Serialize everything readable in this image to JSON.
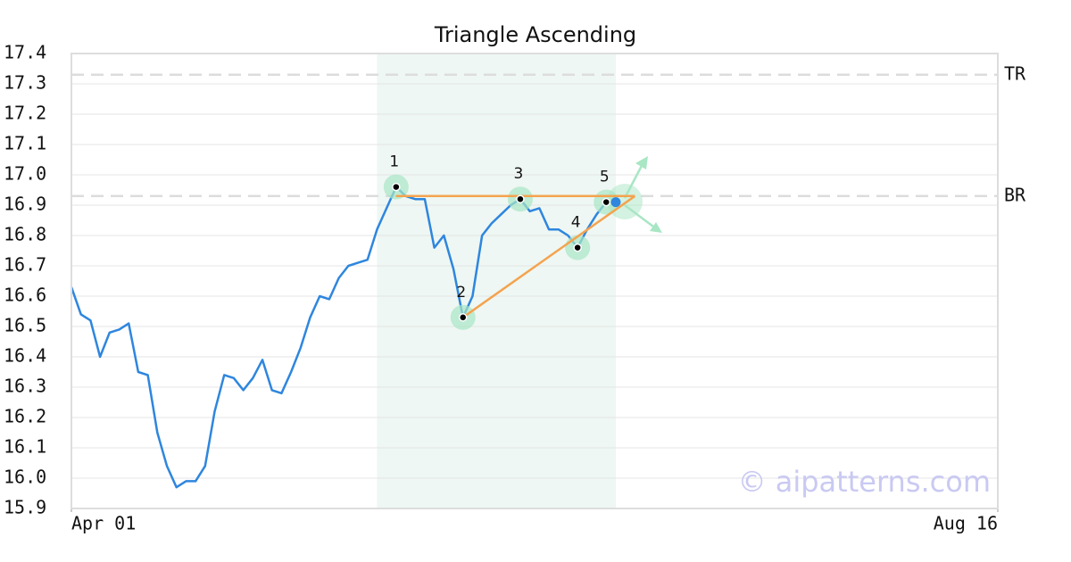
{
  "chart_data": {
    "type": "line",
    "title": "Triangle Ascending",
    "x": [
      0,
      1,
      2,
      3,
      4,
      5,
      6,
      7,
      8,
      9,
      10,
      11,
      12,
      13,
      14,
      15,
      16,
      17,
      18,
      19,
      20,
      21,
      22,
      23,
      24,
      25,
      26,
      27,
      28,
      29,
      30,
      31,
      32,
      33,
      34,
      35,
      36,
      37,
      38,
      39,
      40,
      41,
      42,
      43,
      44,
      45,
      46,
      47,
      48,
      49,
      50,
      51,
      52,
      53,
      54,
      55,
      56,
      57
    ],
    "values": [
      16.63,
      16.54,
      16.52,
      16.4,
      16.48,
      16.49,
      16.51,
      16.35,
      16.34,
      16.15,
      16.04,
      15.97,
      15.99,
      15.99,
      16.04,
      16.22,
      16.34,
      16.33,
      16.29,
      16.33,
      16.39,
      16.29,
      16.28,
      16.35,
      16.43,
      16.53,
      16.6,
      16.59,
      16.66,
      16.7,
      16.71,
      16.72,
      16.82,
      16.89,
      16.96,
      16.93,
      16.92,
      16.92,
      16.76,
      16.8,
      16.69,
      16.53,
      16.6,
      16.8,
      16.84,
      16.87,
      16.9,
      16.92,
      16.88,
      16.89,
      16.82,
      16.82,
      16.8,
      16.76,
      16.82,
      16.87,
      16.91,
      16.91
    ],
    "color": "#2e86de",
    "xlim": [
      0,
      97
    ],
    "xticks": [
      {
        "value": 0,
        "label": "Apr 01"
      },
      {
        "value": 97,
        "label": "Aug 16"
      }
    ],
    "ylim": [
      15.9,
      17.4
    ],
    "yticks": [
      15.9,
      {
        "value": 16.0,
        "label": "16.0"
      },
      16.1,
      16.2,
      16.3,
      16.4,
      16.5,
      16.6,
      16.7,
      16.8,
      16.9,
      {
        "value": 17.0,
        "label": "17.0"
      },
      17.1,
      17.2,
      17.3,
      17.4
    ],
    "grid": true,
    "highlight_x": [
      32,
      57
    ],
    "levels": [
      {
        "label": "TR",
        "value": 17.33
      },
      {
        "label": "BR",
        "value": 16.93
      }
    ],
    "pattern_points": {
      "labels": [
        "1",
        "2",
        "3",
        "4",
        "5"
      ],
      "x": [
        34,
        41,
        47,
        53,
        56
      ],
      "values": [
        16.96,
        16.53,
        16.92,
        16.76,
        16.91
      ]
    },
    "trend_lines": [
      {
        "x": [
          34,
          59
        ],
        "values": [
          16.93,
          16.93
        ]
      },
      {
        "x": [
          41,
          59
        ],
        "values": [
          16.53,
          16.93
        ]
      }
    ],
    "last_point": {
      "x": 57,
      "value": 16.91
    },
    "watermark": "© aipatterns.com"
  }
}
